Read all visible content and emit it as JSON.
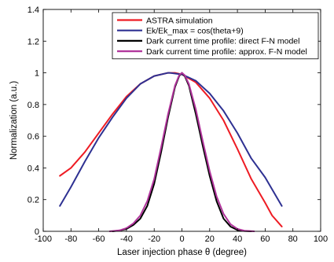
{
  "chart_data": {
    "type": "line",
    "xlabel": "Laser injection phase θ (degree)",
    "ylabel": "Normalization (a.u.)",
    "xlim": [
      -100,
      100
    ],
    "ylim": [
      0,
      1.4
    ],
    "xticks": [
      -100,
      -80,
      -60,
      -40,
      -20,
      0,
      20,
      40,
      60,
      80,
      100
    ],
    "yticks": [
      0,
      0.2,
      0.4,
      0.6,
      0.8,
      1,
      1.2,
      1.4
    ],
    "grid": false,
    "legend_position": "top-right",
    "series": [
      {
        "name": "ASTRA simulation",
        "color": "#ee1c24",
        "x": [
          -88,
          -80,
          -70,
          -60,
          -50,
          -40,
          -30,
          -20,
          -10,
          -5,
          0,
          10,
          20,
          30,
          40,
          50,
          60,
          65,
          72
        ],
        "y": [
          0.35,
          0.4,
          0.5,
          0.62,
          0.74,
          0.85,
          0.93,
          0.98,
          1.0,
          1.0,
          0.99,
          0.94,
          0.84,
          0.7,
          0.52,
          0.33,
          0.18,
          0.1,
          0.03
        ]
      },
      {
        "name": "Ek/Ek_max = cos(theta+9)",
        "color": "#2e3192",
        "x": [
          -88,
          -80,
          -70,
          -60,
          -50,
          -40,
          -30,
          -20,
          -10,
          -9,
          0,
          10,
          20,
          30,
          40,
          50,
          60,
          72
        ],
        "y": [
          0.16,
          0.28,
          0.44,
          0.59,
          0.72,
          0.84,
          0.93,
          0.98,
          1.0,
          1.0,
          0.99,
          0.95,
          0.87,
          0.76,
          0.62,
          0.46,
          0.34,
          0.16
        ]
      },
      {
        "name": "Dark current time profile: direct F-N model",
        "color": "#000000",
        "x": [
          -50,
          -45,
          -40,
          -35,
          -30,
          -25,
          -20,
          -15,
          -10,
          -5,
          -2,
          0,
          2,
          5,
          10,
          15,
          20,
          25,
          30,
          35,
          40,
          45,
          50
        ],
        "y": [
          0.0,
          0.005,
          0.015,
          0.04,
          0.08,
          0.16,
          0.3,
          0.5,
          0.72,
          0.91,
          0.98,
          1.0,
          0.98,
          0.92,
          0.74,
          0.54,
          0.35,
          0.19,
          0.08,
          0.03,
          0.008,
          0.002,
          0.0
        ]
      },
      {
        "name": "Dark current time profile: approx. F-N model",
        "color": "#b0349b",
        "x": [
          -52,
          -45,
          -40,
          -35,
          -30,
          -25,
          -20,
          -15,
          -10,
          -5,
          -2,
          0,
          2,
          5,
          10,
          15,
          20,
          25,
          30,
          35,
          40,
          45,
          52
        ],
        "y": [
          0.0,
          0.006,
          0.02,
          0.05,
          0.1,
          0.19,
          0.33,
          0.53,
          0.74,
          0.92,
          0.985,
          1.0,
          0.985,
          0.93,
          0.77,
          0.57,
          0.38,
          0.22,
          0.11,
          0.045,
          0.015,
          0.004,
          0.0
        ]
      }
    ]
  }
}
